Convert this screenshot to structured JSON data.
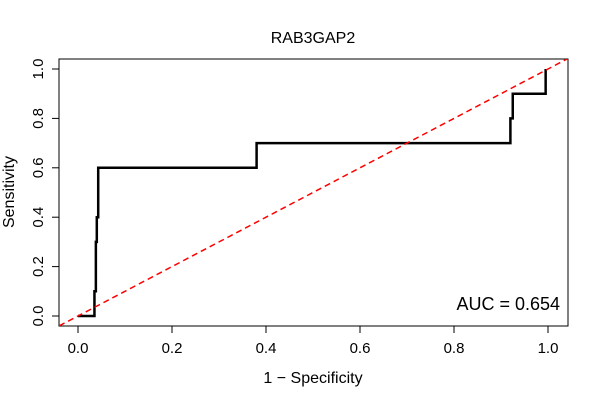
{
  "chart_data": {
    "type": "line",
    "title": "RAB3GAP2",
    "xlabel": "1 − Specificity",
    "ylabel": "Sensitivity",
    "xlim": [
      0,
      1
    ],
    "ylim": [
      0,
      1
    ],
    "x_ticks": [
      "0.0",
      "0.2",
      "0.4",
      "0.6",
      "0.8",
      "1.0"
    ],
    "y_ticks": [
      "0.0",
      "0.2",
      "0.4",
      "0.6",
      "0.8",
      "1.0"
    ],
    "grid": false,
    "annotation": "AUC = 0.654",
    "series": [
      {
        "color": "#000000",
        "style": "solid",
        "points": [
          [
            0.0,
            0.0
          ],
          [
            0.035,
            0.0
          ],
          [
            0.035,
            0.1
          ],
          [
            0.038,
            0.1
          ],
          [
            0.038,
            0.3
          ],
          [
            0.04,
            0.3
          ],
          [
            0.04,
            0.4
          ],
          [
            0.043,
            0.4
          ],
          [
            0.043,
            0.6
          ],
          [
            0.38,
            0.6
          ],
          [
            0.38,
            0.7
          ],
          [
            0.92,
            0.7
          ],
          [
            0.92,
            0.8
          ],
          [
            0.925,
            0.8
          ],
          [
            0.925,
            0.9
          ],
          [
            0.995,
            0.9
          ],
          [
            0.995,
            1.0
          ]
        ]
      },
      {
        "color": "#ff0000",
        "style": "dashed",
        "points": [
          [
            -0.04,
            -0.04
          ],
          [
            1.05,
            1.05
          ]
        ]
      }
    ]
  }
}
